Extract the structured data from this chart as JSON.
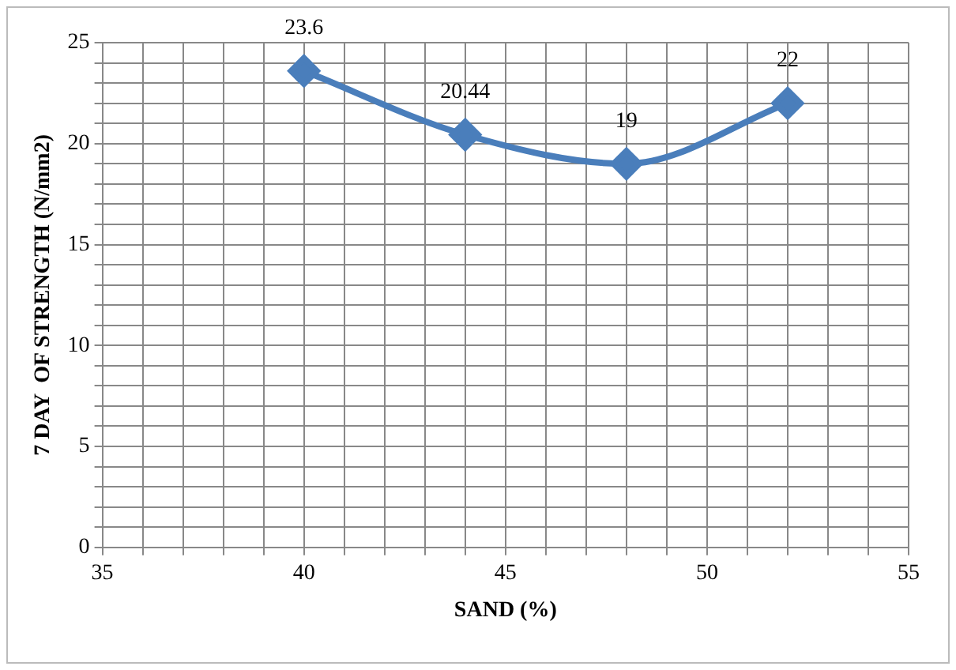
{
  "chart_data": {
    "type": "line",
    "xlabel": "SAND (%)",
    "ylabel": "7 DAY  OF STRENGTH (N/mm2)",
    "x": [
      40,
      44,
      48,
      52
    ],
    "series": [
      {
        "color": "#4a7ebb",
        "values": [
          23.6,
          20.44,
          19,
          22
        ]
      }
    ],
    "xlim": [
      35,
      55
    ],
    "xticks": [
      35,
      {
        "value": 36,
        "label": null
      },
      {
        "value": 37,
        "label": null
      },
      {
        "value": 38,
        "label": null
      },
      {
        "value": 39,
        "label": null
      },
      40,
      {
        "value": 41,
        "label": null
      },
      {
        "value": 42,
        "label": null
      },
      {
        "value": 43,
        "label": null
      },
      {
        "value": 44,
        "label": null
      },
      45,
      {
        "value": 46,
        "label": null
      },
      {
        "value": 47,
        "label": null
      },
      {
        "value": 48,
        "label": null
      },
      {
        "value": 49,
        "label": null
      },
      50,
      {
        "value": 51,
        "label": null
      },
      {
        "value": 52,
        "label": null
      },
      {
        "value": 53,
        "label": null
      },
      {
        "value": 54,
        "label": null
      },
      55
    ],
    "ylim": [
      0,
      25
    ],
    "yticks": [
      0,
      {
        "value": 1,
        "label": null
      },
      {
        "value": 2,
        "label": null
      },
      {
        "value": 3,
        "label": null
      },
      {
        "value": 4,
        "label": null
      },
      5,
      {
        "value": 6,
        "label": null
      },
      {
        "value": 7,
        "label": null
      },
      {
        "value": 8,
        "label": null
      },
      {
        "value": 9,
        "label": null
      },
      10,
      {
        "value": 11,
        "label": null
      },
      {
        "value": 12,
        "label": null
      },
      {
        "value": 13,
        "label": null
      },
      {
        "value": 14,
        "label": null
      },
      15,
      {
        "value": 16,
        "label": null
      },
      {
        "value": 17,
        "label": null
      },
      {
        "value": 18,
        "label": null
      },
      {
        "value": 19,
        "label": null
      },
      20,
      {
        "value": 21,
        "label": null
      },
      {
        "value": 22,
        "label": null
      },
      {
        "value": 23,
        "label": null
      },
      {
        "value": 24,
        "label": null
      },
      25
    ],
    "grid": true,
    "marker": "diamond",
    "line_style": "solid",
    "data_labels": true
  }
}
